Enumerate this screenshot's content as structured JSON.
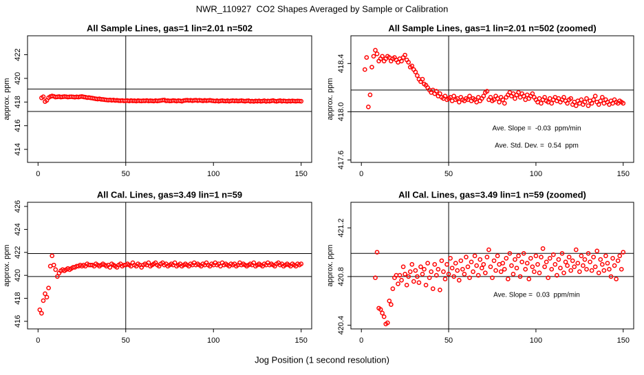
{
  "title": "NWR_110927  CO2 Shapes Averaged by Sample or Calibration",
  "xlabel": "Jog Position (1 second resolution)",
  "chart_data": [
    {
      "type": "scatter",
      "title": "All Sample Lines, gas=1 lin=2.01 n=502",
      "ylabel": "approx. ppm",
      "color": "#ff0000",
      "xlim": [
        -6,
        156
      ],
      "ylim": [
        412.9,
        423.6
      ],
      "xticks": [
        0,
        50,
        100,
        150
      ],
      "yticks": [
        414,
        416,
        418,
        420,
        422
      ],
      "hlines": [
        417.2,
        419.1
      ],
      "vline": 50,
      "annotations": [],
      "x": [
        2,
        3,
        4,
        5,
        6,
        7,
        8,
        9,
        10,
        11,
        12,
        13,
        14,
        15,
        16,
        17,
        18,
        19,
        20,
        21,
        22,
        23,
        24,
        25,
        26,
        27,
        28,
        29,
        30,
        31,
        32,
        33,
        34,
        35,
        36,
        37,
        38,
        39,
        40,
        41,
        42,
        43,
        44,
        45,
        46,
        47,
        48,
        49,
        50,
        51,
        52,
        53,
        54,
        55,
        56,
        57,
        58,
        59,
        60,
        61,
        62,
        63,
        64,
        65,
        66,
        67,
        68,
        69,
        70,
        71,
        72,
        73,
        74,
        75,
        76,
        77,
        78,
        79,
        80,
        81,
        82,
        83,
        84,
        85,
        86,
        87,
        88,
        89,
        90,
        91,
        92,
        93,
        94,
        95,
        96,
        97,
        98,
        99,
        100,
        101,
        102,
        103,
        104,
        105,
        106,
        107,
        108,
        109,
        110,
        111,
        112,
        113,
        114,
        115,
        116,
        117,
        118,
        119,
        120,
        121,
        122,
        123,
        124,
        125,
        126,
        127,
        128,
        129,
        130,
        131,
        132,
        133,
        134,
        135,
        136,
        137,
        138,
        139,
        140,
        141,
        142,
        143,
        144,
        145,
        146,
        147,
        148,
        149,
        150
      ],
      "values": [
        418.35,
        418.45,
        418.04,
        418.14,
        418.37,
        418.46,
        418.51,
        418.48,
        418.42,
        418.44,
        418.46,
        418.42,
        418.44,
        418.46,
        418.45,
        418.42,
        418.44,
        418.45,
        418.43,
        418.41,
        418.44,
        418.42,
        418.45,
        418.47,
        418.43,
        418.41,
        418.37,
        418.38,
        418.35,
        418.33,
        418.3,
        418.27,
        418.25,
        418.27,
        418.23,
        418.22,
        418.2,
        418.18,
        418.16,
        418.18,
        418.15,
        418.17,
        418.13,
        418.15,
        418.12,
        418.11,
        418.13,
        418.1,
        418.11,
        418.12,
        418.09,
        418.13,
        418.1,
        418.11,
        418.08,
        418.12,
        418.1,
        418.09,
        418.11,
        418.1,
        418.13,
        418.09,
        418.11,
        418.1,
        418.08,
        418.12,
        418.09,
        418.11,
        418.13,
        418.16,
        418.17,
        418.1,
        418.12,
        418.09,
        418.1,
        418.13,
        418.11,
        418.08,
        418.12,
        418.1,
        418.07,
        418.12,
        418.14,
        418.16,
        418.13,
        418.15,
        418.11,
        418.14,
        418.16,
        418.12,
        418.15,
        418.13,
        418.1,
        418.14,
        418.11,
        418.13,
        418.15,
        418.12,
        418.1,
        418.08,
        418.11,
        418.07,
        418.1,
        418.12,
        418.09,
        418.08,
        418.11,
        418.07,
        418.1,
        418.12,
        418.09,
        418.11,
        418.08,
        418.1,
        418.12,
        418.09,
        418.07,
        418.1,
        418.11,
        418.06,
        418.08,
        418.05,
        418.09,
        418.07,
        418.1,
        418.06,
        418.08,
        418.11,
        418.05,
        418.09,
        418.07,
        418.1,
        418.13,
        418.08,
        418.06,
        418.09,
        418.12,
        418.07,
        418.1,
        418.08,
        418.06,
        418.09,
        418.07,
        418.1,
        418.08,
        418.07,
        418.09,
        418.08,
        418.07
      ]
    },
    {
      "type": "scatter",
      "title": "All Sample Lines, gas=1 lin=2.01 n=502 (zoomed)",
      "ylabel": "approx. ppm",
      "color": "#ff0000",
      "xlim": [
        -6,
        156
      ],
      "ylim": [
        417.58,
        418.63
      ],
      "xticks": [
        0,
        50,
        100,
        150
      ],
      "yticks": [
        417.6,
        {
          "value": 418.0,
          "label": "418.0"
        },
        418.4
      ],
      "hlines": [
        418.0,
        418.18
      ],
      "vline": 50,
      "annotations": [
        "Ave. Slope =  -0.03  ppm/min",
        "Ave. Std. Dev. =  0.54  ppm"
      ],
      "x": [
        2,
        3,
        4,
        5,
        6,
        7,
        8,
        9,
        10,
        11,
        12,
        13,
        14,
        15,
        16,
        17,
        18,
        19,
        20,
        21,
        22,
        23,
        24,
        25,
        26,
        27,
        28,
        29,
        30,
        31,
        32,
        33,
        34,
        35,
        36,
        37,
        38,
        39,
        40,
        41,
        42,
        43,
        44,
        45,
        46,
        47,
        48,
        49,
        50,
        51,
        52,
        53,
        54,
        55,
        56,
        57,
        58,
        59,
        60,
        61,
        62,
        63,
        64,
        65,
        66,
        67,
        68,
        69,
        70,
        71,
        72,
        73,
        74,
        75,
        76,
        77,
        78,
        79,
        80,
        81,
        82,
        83,
        84,
        85,
        86,
        87,
        88,
        89,
        90,
        91,
        92,
        93,
        94,
        95,
        96,
        97,
        98,
        99,
        100,
        101,
        102,
        103,
        104,
        105,
        106,
        107,
        108,
        109,
        110,
        111,
        112,
        113,
        114,
        115,
        116,
        117,
        118,
        119,
        120,
        121,
        122,
        123,
        124,
        125,
        126,
        127,
        128,
        129,
        130,
        131,
        132,
        133,
        134,
        135,
        136,
        137,
        138,
        139,
        140,
        141,
        142,
        143,
        144,
        145,
        146,
        147,
        148,
        149,
        150
      ],
      "values": [
        418.35,
        418.45,
        418.04,
        418.14,
        418.37,
        418.46,
        418.51,
        418.48,
        418.42,
        418.44,
        418.46,
        418.42,
        418.44,
        418.46,
        418.45,
        418.42,
        418.44,
        418.45,
        418.43,
        418.41,
        418.44,
        418.42,
        418.45,
        418.47,
        418.43,
        418.41,
        418.37,
        418.38,
        418.35,
        418.33,
        418.3,
        418.27,
        418.25,
        418.27,
        418.23,
        418.22,
        418.2,
        418.18,
        418.16,
        418.18,
        418.15,
        418.17,
        418.13,
        418.15,
        418.12,
        418.11,
        418.13,
        418.1,
        418.11,
        418.12,
        418.09,
        418.13,
        418.1,
        418.11,
        418.08,
        418.12,
        418.1,
        418.09,
        418.11,
        418.1,
        418.13,
        418.09,
        418.11,
        418.1,
        418.08,
        418.12,
        418.09,
        418.11,
        418.13,
        418.16,
        418.17,
        418.1,
        418.12,
        418.09,
        418.1,
        418.13,
        418.11,
        418.08,
        418.12,
        418.1,
        418.07,
        418.12,
        418.14,
        418.16,
        418.13,
        418.15,
        418.11,
        418.14,
        418.16,
        418.12,
        418.15,
        418.13,
        418.1,
        418.14,
        418.11,
        418.13,
        418.15,
        418.12,
        418.1,
        418.08,
        418.11,
        418.07,
        418.1,
        418.12,
        418.09,
        418.08,
        418.11,
        418.07,
        418.1,
        418.12,
        418.09,
        418.11,
        418.08,
        418.1,
        418.12,
        418.09,
        418.07,
        418.1,
        418.11,
        418.06,
        418.08,
        418.05,
        418.09,
        418.07,
        418.1,
        418.06,
        418.08,
        418.11,
        418.05,
        418.09,
        418.07,
        418.1,
        418.13,
        418.08,
        418.06,
        418.09,
        418.12,
        418.07,
        418.1,
        418.08,
        418.06,
        418.09,
        418.07,
        418.1,
        418.08,
        418.07,
        418.09,
        418.08,
        418.07
      ]
    },
    {
      "type": "scatter",
      "title": "All Cal. Lines, gas=3.49 lin=1 n=59",
      "ylabel": "approx. ppm",
      "color": "#ff0000",
      "xlim": [
        -6,
        156
      ],
      "ylim": [
        415.34,
        426.36
      ],
      "xticks": [
        0,
        50,
        100,
        150
      ],
      "yticks": [
        416,
        418,
        420,
        422,
        424,
        426
      ],
      "hlines": [
        419.9,
        421.9
      ],
      "vline": 50,
      "annotations": [],
      "x": [
        1,
        2,
        3,
        4,
        5,
        6,
        7,
        8,
        9,
        10,
        11,
        12,
        13,
        14,
        15,
        16,
        17,
        18,
        19,
        20,
        21,
        22,
        23,
        24,
        25,
        26,
        27,
        28,
        29,
        30,
        31,
        32,
        33,
        34,
        35,
        36,
        37,
        38,
        39,
        40,
        41,
        42,
        43,
        44,
        45,
        46,
        47,
        48,
        49,
        50,
        51,
        52,
        53,
        54,
        55,
        56,
        57,
        58,
        59,
        60,
        61,
        62,
        63,
        64,
        65,
        66,
        67,
        68,
        69,
        70,
        71,
        72,
        73,
        74,
        75,
        76,
        77,
        78,
        79,
        80,
        81,
        82,
        83,
        84,
        85,
        86,
        87,
        88,
        89,
        90,
        91,
        92,
        93,
        94,
        95,
        96,
        97,
        98,
        99,
        100,
        101,
        102,
        103,
        104,
        105,
        106,
        107,
        108,
        109,
        110,
        111,
        112,
        113,
        114,
        115,
        116,
        117,
        118,
        119,
        120,
        121,
        122,
        123,
        124,
        125,
        126,
        127,
        128,
        129,
        130,
        131,
        132,
        133,
        134,
        135,
        136,
        137,
        138,
        139,
        140,
        141,
        142,
        143,
        144,
        145,
        146,
        147,
        148,
        149,
        150
      ],
      "values": [
        417.0,
        416.7,
        417.8,
        418.4,
        418.1,
        418.9,
        420.8,
        421.7,
        420.9,
        420.5,
        419.9,
        420.2,
        420.4,
        420.5,
        420.4,
        420.5,
        420.6,
        420.5,
        420.6,
        420.7,
        420.7,
        420.8,
        420.8,
        420.9,
        420.8,
        420.9,
        420.8,
        421.0,
        420.9,
        420.9,
        420.9,
        420.8,
        421.0,
        420.9,
        420.8,
        420.9,
        421.0,
        420.9,
        420.8,
        420.9,
        420.7,
        421.0,
        420.9,
        420.8,
        420.7,
        420.9,
        421.0,
        420.8,
        420.9,
        420.9,
        421.0,
        420.9,
        420.8,
        421.1,
        420.9,
        420.8,
        421.0,
        420.9,
        420.7,
        420.9,
        421.0,
        420.9,
        421.1,
        420.8,
        420.9,
        421.0,
        421.1,
        420.9,
        420.8,
        421.0,
        421.1,
        420.9,
        421.0,
        420.8,
        420.9,
        421.0,
        420.9,
        421.1,
        420.8,
        420.9,
        421.0,
        420.8,
        420.9,
        421.0,
        420.9,
        420.8,
        421.0,
        420.9,
        421.1,
        420.9,
        421.0,
        420.9,
        420.8,
        421.0,
        420.9,
        421.1,
        420.9,
        420.8,
        421.0,
        420.9,
        421.1,
        420.9,
        421.0,
        420.8,
        421.1,
        420.9,
        421.0,
        420.9,
        420.8,
        421.0,
        420.9,
        421.0,
        420.8,
        420.9,
        421.1,
        420.9,
        421.0,
        420.9,
        420.8,
        420.9,
        421.0,
        420.9,
        421.1,
        420.8,
        420.9,
        421.0,
        420.9,
        420.8,
        421.0,
        420.9,
        421.1,
        420.9,
        421.0,
        420.9,
        420.8,
        421.0,
        421.1,
        420.9,
        421.0,
        420.8,
        420.9,
        421.0,
        420.9,
        420.8,
        421.0,
        420.9,
        420.8,
        421.0,
        420.9,
        421.0
      ]
    },
    {
      "type": "scatter",
      "title": "All Cal. Lines, gas=3.49 lin=1 n=59 (zoomed)",
      "ylabel": "approx. ppm",
      "color": "#ff0000",
      "xlim": [
        -6,
        156
      ],
      "ylim": [
        420.37,
        421.41
      ],
      "xticks": [
        0,
        50,
        100,
        150
      ],
      "yticks": [
        420.4,
        420.8,
        421.2
      ],
      "hlines": [
        420.8,
        420.99
      ],
      "vline": 50,
      "annotations": [
        "Ave. Slope =  0.03  ppm/min"
      ],
      "x": [
        8,
        9,
        10,
        11,
        12,
        13,
        14,
        15,
        16,
        17,
        18,
        19,
        20,
        21,
        22,
        23,
        24,
        25,
        26,
        27,
        28,
        29,
        30,
        31,
        32,
        33,
        34,
        35,
        36,
        37,
        38,
        39,
        40,
        41,
        42,
        43,
        44,
        45,
        46,
        47,
        48,
        49,
        50,
        51,
        52,
        53,
        54,
        55,
        56,
        57,
        58,
        59,
        60,
        61,
        62,
        63,
        64,
        65,
        66,
        67,
        68,
        69,
        70,
        71,
        72,
        73,
        74,
        75,
        76,
        77,
        78,
        79,
        80,
        81,
        82,
        83,
        84,
        85,
        86,
        87,
        88,
        89,
        90,
        91,
        92,
        93,
        94,
        95,
        96,
        97,
        98,
        99,
        100,
        101,
        102,
        103,
        104,
        105,
        106,
        107,
        108,
        109,
        110,
        111,
        112,
        113,
        114,
        115,
        116,
        117,
        118,
        119,
        120,
        121,
        122,
        123,
        124,
        125,
        126,
        127,
        128,
        129,
        130,
        131,
        132,
        133,
        134,
        135,
        136,
        137,
        138,
        139,
        140,
        141,
        142,
        143,
        144,
        145,
        146,
        147,
        148,
        149,
        150
      ],
      "values": [
        420.79,
        421.0,
        420.54,
        420.53,
        420.5,
        420.47,
        420.41,
        420.42,
        420.6,
        420.57,
        420.7,
        420.79,
        420.81,
        420.74,
        420.81,
        420.77,
        420.88,
        420.82,
        420.73,
        420.8,
        420.84,
        420.9,
        420.76,
        420.85,
        420.8,
        420.75,
        420.88,
        420.82,
        420.86,
        420.73,
        420.91,
        420.79,
        420.84,
        420.7,
        420.9,
        420.81,
        420.86,
        420.69,
        420.93,
        420.84,
        420.78,
        420.9,
        420.82,
        420.95,
        420.87,
        420.8,
        420.91,
        420.85,
        420.77,
        420.93,
        420.86,
        420.82,
        420.96,
        420.88,
        420.79,
        420.92,
        420.84,
        420.97,
        420.89,
        420.81,
        420.94,
        420.87,
        420.9,
        420.83,
        420.96,
        421.02,
        420.88,
        420.79,
        420.93,
        420.85,
        420.97,
        420.9,
        420.84,
        420.91,
        420.86,
        420.95,
        420.78,
        420.99,
        420.89,
        420.82,
        420.94,
        420.87,
        420.97,
        420.8,
        420.92,
        420.99,
        420.86,
        420.91,
        420.78,
        420.95,
        420.88,
        420.84,
        420.97,
        420.9,
        420.83,
        420.96,
        421.03,
        420.88,
        420.92,
        420.79,
        420.95,
        420.86,
        420.98,
        420.9,
        420.81,
        420.94,
        420.87,
        420.99,
        420.83,
        420.92,
        420.89,
        420.96,
        420.85,
        420.93,
        420.88,
        421.02,
        420.91,
        420.84,
        420.97,
        420.89,
        420.94,
        420.86,
        420.99,
        420.92,
        420.85,
        420.96,
        420.88,
        421.01,
        420.83,
        420.94,
        420.9,
        420.85,
        420.97,
        420.91,
        420.86,
        420.8,
        420.95,
        420.89,
        420.78,
        420.93,
        420.97,
        420.86,
        421.0
      ]
    }
  ]
}
